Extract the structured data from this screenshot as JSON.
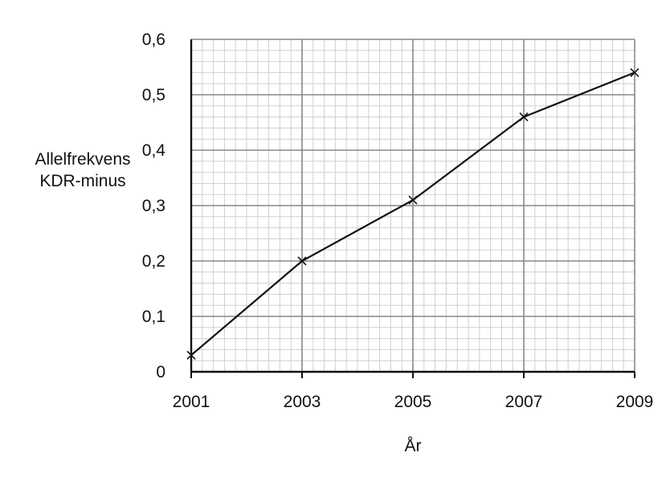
{
  "chart_data": {
    "type": "line",
    "title": "",
    "xlabel": "År",
    "ylabel_lines": [
      "Allelfrekvens",
      "KDR-minus"
    ],
    "xlim": [
      2001,
      2009
    ],
    "ylim": [
      0,
      0.6
    ],
    "x_ticks": [
      2001,
      2003,
      2005,
      2007,
      2009
    ],
    "x_tick_labels": [
      "2001",
      "2003",
      "2005",
      "2007",
      "2009"
    ],
    "y_ticks": [
      0,
      0.1,
      0.2,
      0.3,
      0.4,
      0.5,
      0.6
    ],
    "y_tick_labels": [
      "0",
      "0,1",
      "0,2",
      "0,3",
      "0,4",
      "0,5",
      "0,6"
    ],
    "grid": true,
    "x_minor_step": 0.2,
    "y_minor_step": 0.02,
    "colors": {
      "line": "#111111",
      "grid_major": "#888888",
      "grid_minor": "#cfcfcf"
    },
    "series": [
      {
        "x": [
          2001,
          2003,
          2005,
          2007,
          2009
        ],
        "y": [
          0.03,
          0.2,
          0.31,
          0.46,
          0.54
        ],
        "marker": "x"
      }
    ]
  }
}
